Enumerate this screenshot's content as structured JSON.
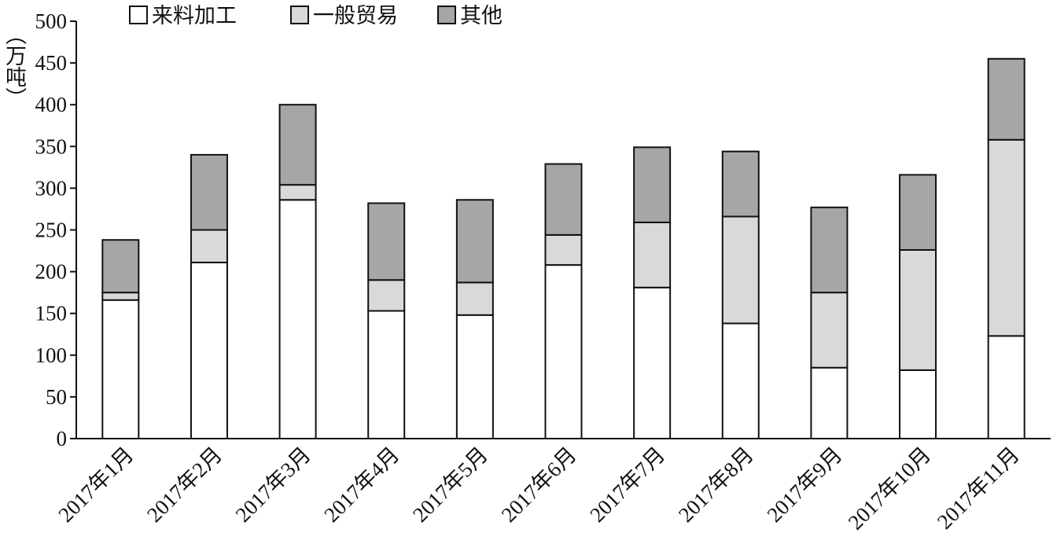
{
  "chart_data": {
    "type": "stacked_bar",
    "y_label": "（万吨）",
    "categories": [
      "2017年1月",
      "2017年2月",
      "2017年3月",
      "2017年4月",
      "2017年5月",
      "2017年6月",
      "2017年7月",
      "2017年8月",
      "2017年9月",
      "2017年10月",
      "2017年11月"
    ],
    "series": [
      {
        "name": "来料加工",
        "color": "#ffffff",
        "values": [
          166,
          211,
          286,
          153,
          148,
          208,
          181,
          138,
          85,
          82,
          123
        ]
      },
      {
        "name": "一般贸易",
        "color": "#d9d9d9",
        "values": [
          9,
          39,
          18,
          37,
          39,
          36,
          78,
          128,
          90,
          144,
          235
        ]
      },
      {
        "name": "其他",
        "color": "#a6a6a8",
        "values": [
          63,
          90,
          96,
          92,
          99,
          85,
          90,
          78,
          102,
          90,
          97
        ]
      }
    ],
    "ylim": [
      0,
      500
    ],
    "yticks": [
      0,
      50,
      100,
      150,
      200,
      250,
      300,
      350,
      400,
      450,
      500
    ]
  }
}
